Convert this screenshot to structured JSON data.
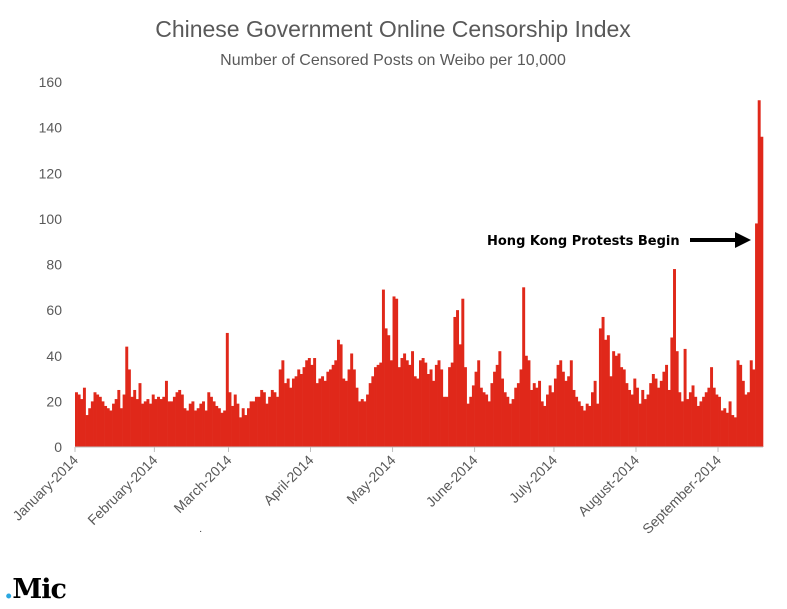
{
  "chart_data": {
    "type": "bar",
    "title": "Chinese Government Online Censorship Index",
    "subtitle": "Number of Censored Posts on Weibo per 10,000",
    "ylim": [
      0,
      160
    ],
    "yticks": [
      0,
      20,
      40,
      60,
      80,
      100,
      120,
      140,
      160
    ],
    "xtick_labels": [
      "January-2014",
      "February-2014",
      "March-2014",
      "April-2014",
      "May-2014",
      "June-2014",
      "July-2014",
      "August-2014",
      "September-2014"
    ],
    "color": "#e0281a",
    "annotation": "Hong Kong Protests Begin",
    "months": [
      {
        "label": "January-2014",
        "values": [
          24,
          23,
          21,
          26,
          14,
          17,
          20,
          24,
          23,
          22,
          20,
          18,
          17,
          16,
          19,
          21,
          25,
          17,
          23,
          44,
          34,
          22,
          25,
          21,
          28,
          19,
          20,
          21,
          19,
          23
        ]
      },
      {
        "label": "February-2014",
        "values": [
          21,
          22,
          21,
          22,
          29,
          20,
          20,
          22,
          24,
          25,
          23,
          17,
          16,
          19,
          20,
          16,
          17,
          19,
          20,
          16,
          24,
          22,
          20,
          18,
          17,
          15,
          16,
          50
        ]
      },
      {
        "label": "March-2014",
        "values": [
          24,
          18,
          23,
          19,
          13,
          17,
          14,
          17,
          20,
          20,
          22,
          22,
          25,
          24,
          19,
          22,
          25,
          24,
          22,
          34,
          38,
          28,
          30,
          26,
          30,
          31,
          34,
          32,
          35,
          38,
          39
        ]
      },
      {
        "label": "April-2014",
        "values": [
          36,
          39,
          28,
          30,
          31,
          29,
          33,
          34,
          36,
          38,
          47,
          45,
          30,
          29,
          34,
          41,
          34,
          26,
          20,
          21,
          20,
          23,
          28,
          31,
          35,
          36,
          37,
          69,
          52,
          49,
          38
        ]
      },
      {
        "label": "May-2014",
        "values": [
          66,
          65,
          35,
          39,
          41,
          38,
          36,
          42,
          31,
          30,
          38,
          39,
          37,
          32,
          34,
          29,
          36,
          38,
          34,
          22,
          22,
          35,
          37,
          57,
          60,
          45,
          65,
          35,
          19,
          22,
          27
        ]
      },
      {
        "label": "June-2014",
        "values": [
          33,
          38,
          26,
          24,
          23,
          20,
          28,
          33,
          36,
          42,
          30,
          24,
          22,
          19,
          21,
          26,
          28,
          34,
          70,
          40,
          38,
          25,
          28,
          26,
          29,
          20,
          18,
          23,
          27,
          24
        ]
      },
      {
        "label": "July-2014",
        "values": [
          30,
          36,
          38,
          33,
          29,
          31,
          38,
          25,
          22,
          20,
          18,
          16,
          19,
          18,
          24,
          29,
          19,
          52,
          57,
          47,
          49,
          31,
          42,
          40,
          41,
          35,
          34,
          28,
          25,
          23,
          30
        ]
      },
      {
        "label": "August-2014",
        "values": [
          26,
          19,
          25,
          21,
          23,
          28,
          32,
          30,
          26,
          29,
          33,
          36,
          25,
          48,
          78,
          42,
          24,
          20,
          43,
          21,
          24,
          27,
          22,
          18,
          20,
          22,
          24,
          26,
          35,
          26,
          23
        ]
      },
      {
        "label": "September-2014",
        "values": [
          22,
          16,
          17,
          15,
          20,
          14,
          13,
          38,
          36,
          29,
          23,
          24,
          38,
          34,
          98,
          152,
          136
        ]
      }
    ]
  }
}
